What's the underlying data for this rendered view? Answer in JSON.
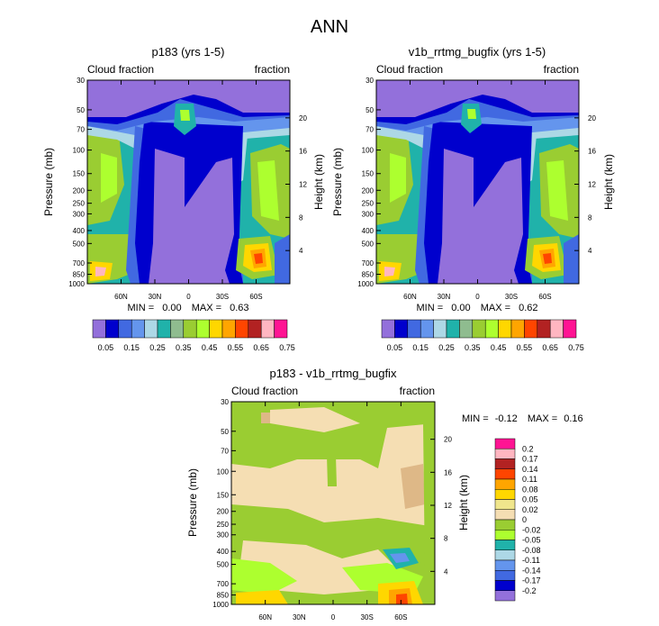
{
  "figure_title": "ANN",
  "chart_data": [
    {
      "type": "contour",
      "title": "p183 (yrs 1-5)",
      "left_string": "Cloud fraction",
      "right_string": "fraction",
      "xlabel": "",
      "ylabel": "Pressure (mb)",
      "ylabel_right": "Height (km)",
      "xticks": [
        "60N",
        "30N",
        "0",
        "30S",
        "60S"
      ],
      "x_values": [
        60,
        30,
        0,
        -30,
        -60
      ],
      "xlim": [
        90,
        -90
      ],
      "yticks": [
        30,
        50,
        70,
        100,
        150,
        200,
        250,
        300,
        400,
        500,
        700,
        850,
        1000
      ],
      "ylim": [
        1000,
        30
      ],
      "height_ticks": [
        20,
        16,
        12,
        8,
        4
      ],
      "stats": {
        "min_label": "MIN =",
        "min": "0.00",
        "max_label": "MAX =",
        "max": "0.63"
      },
      "colorbar": {
        "orientation": "horizontal",
        "levels": [
          "0.05",
          "0.15",
          "0.25",
          "0.35",
          "0.45",
          "0.55",
          "0.65",
          "0.75"
        ],
        "colors": [
          "#9370db",
          "#0000cd",
          "#4169e1",
          "#6495ed",
          "#add8e6",
          "#20b2aa",
          "#8fbc8f",
          "#9acd32",
          "#adff2f",
          "#ffd700",
          "#ffa500",
          "#ff4500",
          "#b22222",
          "#ffb6c1",
          "#ff1493"
        ]
      }
    },
    {
      "type": "contour",
      "title": "v1b_rrtmg_bugfix (yrs 1-5)",
      "left_string": "Cloud fraction",
      "right_string": "fraction",
      "xlabel": "",
      "ylabel": "Pressure (mb)",
      "ylabel_right": "Height (km)",
      "xticks": [
        "60N",
        "30N",
        "0",
        "30S",
        "60S"
      ],
      "x_values": [
        60,
        30,
        0,
        -30,
        -60
      ],
      "xlim": [
        90,
        -90
      ],
      "yticks": [
        30,
        50,
        70,
        100,
        150,
        200,
        250,
        300,
        400,
        500,
        700,
        850,
        1000
      ],
      "ylim": [
        1000,
        30
      ],
      "height_ticks": [
        20,
        16,
        12,
        8,
        4
      ],
      "stats": {
        "min_label": "MIN =",
        "min": "0.00",
        "max_label": "MAX =",
        "max": "0.62"
      },
      "colorbar": {
        "orientation": "horizontal",
        "levels": [
          "0.05",
          "0.15",
          "0.25",
          "0.35",
          "0.45",
          "0.55",
          "0.65",
          "0.75"
        ],
        "colors": [
          "#9370db",
          "#0000cd",
          "#4169e1",
          "#6495ed",
          "#add8e6",
          "#20b2aa",
          "#8fbc8f",
          "#9acd32",
          "#adff2f",
          "#ffd700",
          "#ffa500",
          "#ff4500",
          "#b22222",
          "#ffb6c1",
          "#ff1493"
        ]
      }
    },
    {
      "type": "contour",
      "title": "p183 - v1b_rrtmg_bugfix",
      "left_string": "Cloud fraction",
      "right_string": "fraction",
      "xlabel": "",
      "ylabel": "Pressure (mb)",
      "ylabel_right": "Height (km)",
      "xticks": [
        "60N",
        "30N",
        "0",
        "30S",
        "60S"
      ],
      "x_values": [
        60,
        30,
        0,
        -30,
        -60
      ],
      "xlim": [
        90,
        -90
      ],
      "yticks": [
        30,
        50,
        70,
        100,
        150,
        200,
        250,
        300,
        400,
        500,
        700,
        850,
        1000
      ],
      "ylim": [
        1000,
        30
      ],
      "height_ticks": [
        20,
        16,
        12,
        8,
        4
      ],
      "stats": {
        "min_label": "MIN =",
        "min": "-0.12",
        "max_label": "MAX =",
        "max": "0.16"
      },
      "colorbar": {
        "orientation": "vertical",
        "levels": [
          "0.2",
          "0.17",
          "0.14",
          "0.11",
          "0.08",
          "0.05",
          "0.02",
          "0",
          "-0.02",
          "-0.05",
          "-0.08",
          "-0.11",
          "-0.14",
          "-0.17",
          "-0.2"
        ],
        "colors": [
          "#ff1493",
          "#ffb6c1",
          "#b22222",
          "#ff4500",
          "#ffa500",
          "#ffd700",
          "#f0e68c",
          "#f5deb3",
          "#9acd32",
          "#adff2f",
          "#20b2aa",
          "#add8e6",
          "#6495ed",
          "#4169e1",
          "#0000cd",
          "#9370db"
        ]
      }
    }
  ]
}
